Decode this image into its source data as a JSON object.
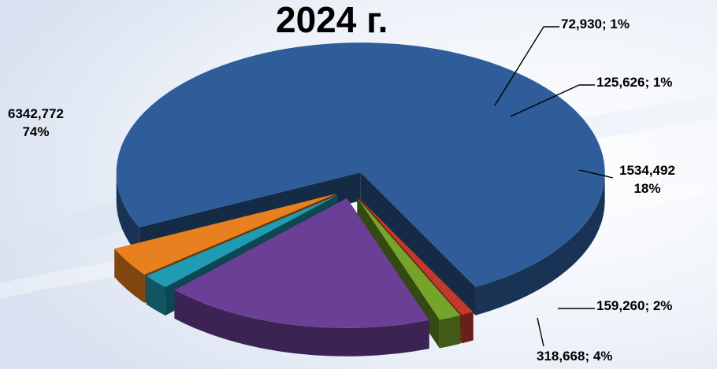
{
  "chart_data": {
    "type": "pie",
    "title": "2024 г.",
    "slices": [
      {
        "value": "6342,772",
        "percent": "74%",
        "color": "#2e5d99"
      },
      {
        "value": "72,930",
        "percent": "1%",
        "color": "#c0392b"
      },
      {
        "value": "125,626",
        "percent": "1%",
        "color": "#76a32a"
      },
      {
        "value": "1534,492",
        "percent": "18%",
        "color": "#6b3f96"
      },
      {
        "value": "159,260",
        "percent": "2%",
        "color": "#1f9bb3"
      },
      {
        "value": "318,668",
        "percent": "4%",
        "color": "#e8801f"
      }
    ]
  }
}
